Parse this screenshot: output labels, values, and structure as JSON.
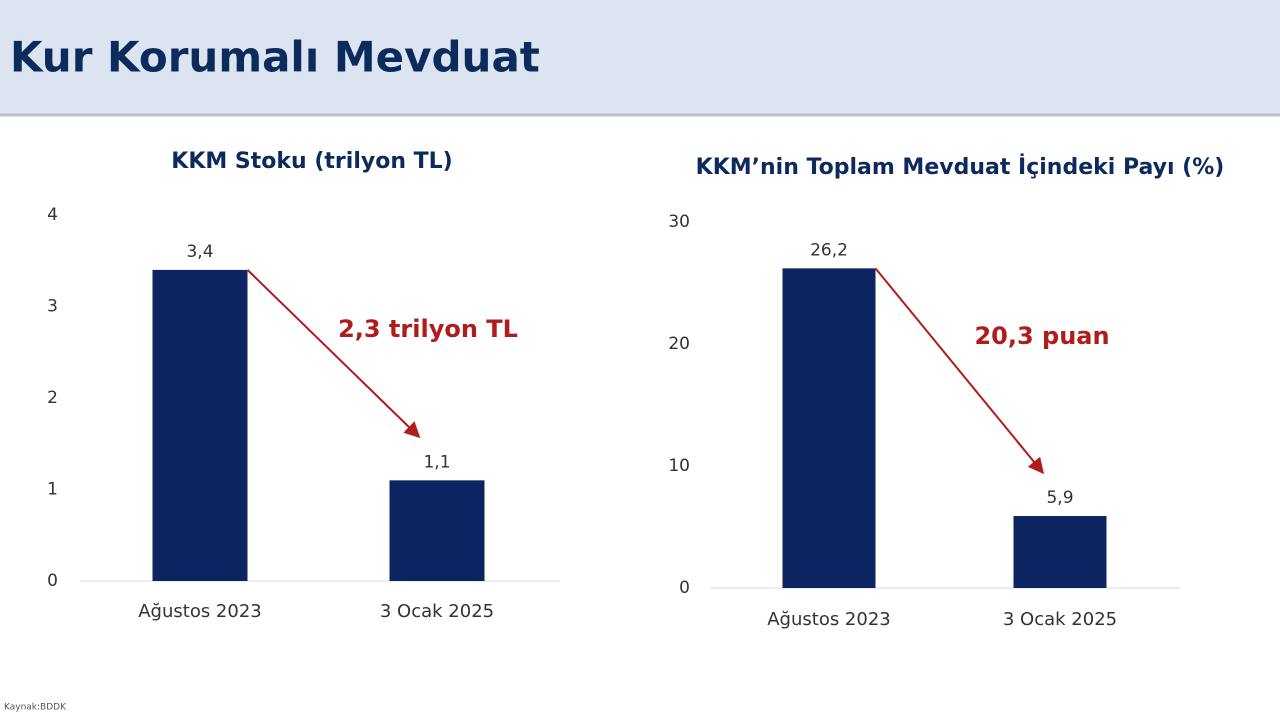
{
  "title": "Kur Korumalı Mevduat",
  "chart_data": [
    {
      "type": "bar",
      "title": "KKM Stoku (trilyon TL)",
      "categories": [
        "Ağustos 2023",
        "3 Ocak 2025"
      ],
      "values": [
        3.4,
        1.1
      ],
      "value_labels": [
        "3,4",
        "1,1"
      ],
      "color": "#0c2461",
      "ylim": [
        0,
        4
      ],
      "yticks": [
        0,
        1,
        2,
        3,
        4
      ],
      "annotation": "2,3 trilyon TL",
      "annotation_color": "#b01c1c"
    },
    {
      "type": "bar",
      "title": "KKM’nin Toplam Mevduat İçindeki Payı (%)",
      "categories": [
        "Ağustos 2023",
        "3 Ocak 2025"
      ],
      "values": [
        26.2,
        5.9
      ],
      "value_labels": [
        "26,2",
        "5,9"
      ],
      "color": "#0c2461",
      "ylim": [
        0,
        30
      ],
      "yticks": [
        0,
        10,
        20,
        30
      ],
      "annotation": "20,3 puan",
      "annotation_color": "#b01c1c"
    }
  ],
  "source": "Kaynak:BDDK"
}
